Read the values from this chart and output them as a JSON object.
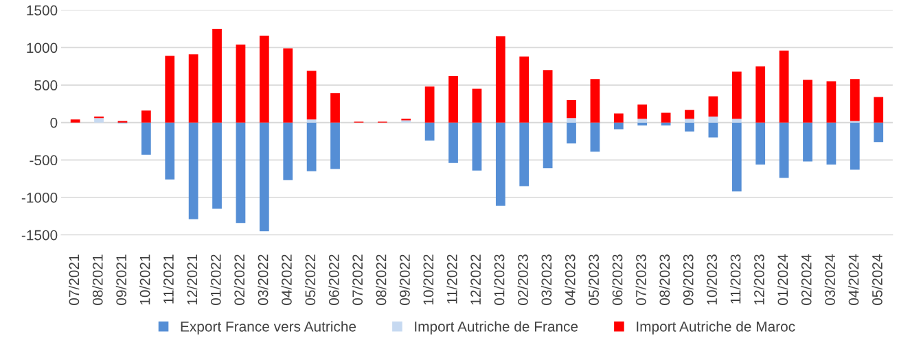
{
  "chart_data": {
    "type": "bar",
    "stacked": true,
    "categories": [
      "07/2021",
      "08/2021",
      "09/2021",
      "10/2021",
      "11/2021",
      "12/2021",
      "01/2022",
      "02/2022",
      "03/2022",
      "04/2022",
      "05/2022",
      "06/2022",
      "07/2022",
      "08/2022",
      "09/2022",
      "10/2022",
      "11/2022",
      "12/2022",
      "01/2023",
      "02/2023",
      "03/2023",
      "04/2023",
      "05/2023",
      "06/2023",
      "07/2023",
      "08/2023",
      "09/2023",
      "10/2023",
      "11/2023",
      "12/2023",
      "01/2024",
      "02/2024",
      "03/2024",
      "04/2024",
      "05/2024"
    ],
    "series": [
      {
        "name": "Export France vers Autriche",
        "color": "#558ed5",
        "values": [
          0,
          0,
          -10,
          -430,
          -760,
          -1290,
          -1150,
          -1340,
          -1450,
          -770,
          -650,
          -620,
          0,
          0,
          0,
          -240,
          -540,
          -640,
          -1110,
          -850,
          -610,
          -280,
          -390,
          -90,
          -40,
          -40,
          -120,
          -200,
          -920,
          -560,
          -740,
          -520,
          -560,
          -630,
          -260
        ]
      },
      {
        "name": "Import Autriche de France",
        "color": "#c6d9f1",
        "values": [
          null,
          60,
          0,
          0,
          null,
          0,
          0,
          0,
          0,
          0,
          40,
          0,
          0,
          0,
          30,
          0,
          0,
          0,
          null,
          0,
          0,
          60,
          0,
          0,
          50,
          0,
          50,
          80,
          50,
          0,
          null,
          0,
          0,
          20,
          0
        ]
      },
      {
        "name": "Import Autriche de Maroc",
        "color": "#ff0000",
        "values": [
          40,
          20,
          20,
          160,
          890,
          910,
          1250,
          1040,
          1160,
          990,
          650,
          390,
          10,
          10,
          20,
          480,
          620,
          450,
          1150,
          880,
          700,
          240,
          580,
          120,
          190,
          130,
          120,
          270,
          630,
          750,
          960,
          570,
          550,
          560,
          340
        ]
      }
    ],
    "ylim": [
      -1500,
      1500
    ],
    "yticks": [
      -1500,
      -1000,
      -500,
      0,
      500,
      1000,
      1500
    ],
    "grid": "y",
    "legend": "bottom"
  }
}
